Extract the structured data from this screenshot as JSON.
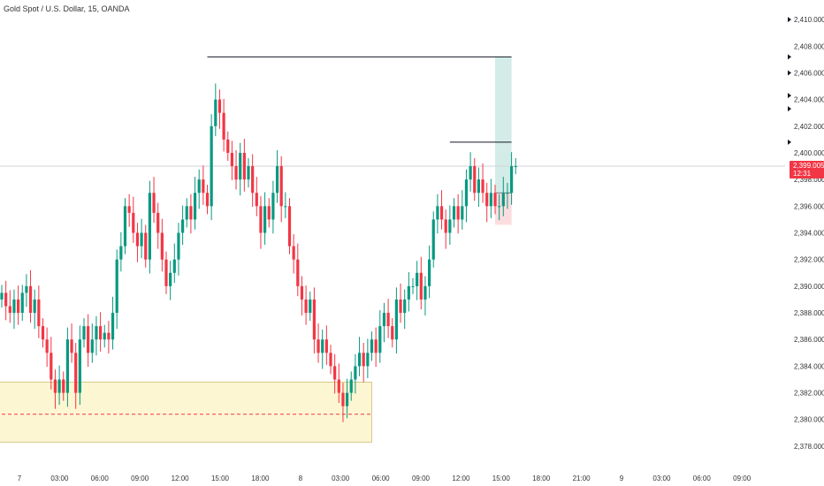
{
  "header": {
    "title": "Gold Spot / U.S. Dollar, 15, OANDA"
  },
  "colors": {
    "up": "#089981",
    "down": "#f23645",
    "profit_zone": "#d3ece7",
    "loss_zone": "#fbdde0",
    "demand_zone": "#fdf6d2",
    "demand_border": "#d8c98a",
    "demand_line": "#f23645"
  },
  "price_tag": {
    "price": "2,399.005",
    "countdown": "12:31"
  },
  "chart_data": {
    "type": "candlestick",
    "ylim": [
      2377,
      2411
    ],
    "x_ticks": [
      "7",
      "03:00",
      "06:00",
      "09:00",
      "12:00",
      "15:00",
      "18:00",
      "8",
      "03:00",
      "06:00",
      "09:00",
      "12:00",
      "15:00",
      "18:00",
      "21:00",
      "9",
      "03:00",
      "06:00",
      "09:00"
    ],
    "y_ticks": [
      "2,410.000",
      "2,408.000",
      "2,406.000",
      "2,404.000",
      "2,402.000",
      "2,400.000",
      "2,398.000",
      "2,396.000",
      "2,394.000",
      "2,392.000",
      "2,390.000",
      "2,388.000",
      "2,386.000",
      "2,384.000",
      "2,382.000",
      "2,380.000",
      "2,378.000"
    ],
    "y_tick_values": [
      2410,
      2408,
      2406,
      2404,
      2402,
      2400,
      2398,
      2396,
      2394,
      2392,
      2390,
      2388,
      2386,
      2384,
      2382,
      2380,
      2378
    ],
    "last_price": 2399.005,
    "closes": [
      2389.5,
      2388.5,
      2388,
      2389,
      2388,
      2389.5,
      2390,
      2388,
      2389,
      2387,
      2386,
      2385,
      2383,
      2382,
      2383,
      2382,
      2386,
      2385,
      2382,
      2386,
      2387,
      2385,
      2386,
      2387,
      2386,
      2386.5,
      2386,
      2388,
      2392,
      2393,
      2396,
      2395.5,
      2394,
      2393,
      2394,
      2392,
      2397,
      2395.5,
      2394,
      2392,
      2390,
      2391,
      2392,
      2394,
      2395,
      2396,
      2395,
      2397,
      2398,
      2397,
      2396,
      2402,
      2404,
      2403,
      2401,
      2400,
      2399,
      2398,
      2400,
      2398,
      2399,
      2397,
      2396,
      2394,
      2396,
      2395,
      2397,
      2399,
      2396,
      2396,
      2393,
      2392,
      2390,
      2389,
      2388,
      2389,
      2386,
      2385,
      2386,
      2385,
      2384,
      2383,
      2382,
      2381,
      2382,
      2383,
      2384,
      2385,
      2384,
      2385,
      2386,
      2385,
      2387,
      2388,
      2387,
      2386,
      2389,
      2388,
      2389,
      2390,
      2390,
      2391,
      2389,
      2390,
      2392,
      2395,
      2396,
      2395,
      2394,
      2395,
      2396,
      2395,
      2396,
      2398,
      2399,
      2397,
      2398,
      2397,
      2396,
      2397,
      2396,
      2396,
      2397,
      2397,
      2399,
      2399.005
    ],
    "lines": [
      {
        "from_index": 50,
        "to_index": 124,
        "price": 2407.2
      },
      {
        "from_index": 109,
        "to_index": 124,
        "price": 2400.8
      }
    ],
    "position": {
      "entry": 2397.0,
      "target": 2407.2,
      "stop": 2394.6,
      "from_index": 120,
      "to_index": 124
    },
    "demand_zone": {
      "high": 2382.8,
      "low": 2378.3,
      "mid": 2380.4,
      "from_index": 0,
      "to_index": 90
    }
  }
}
